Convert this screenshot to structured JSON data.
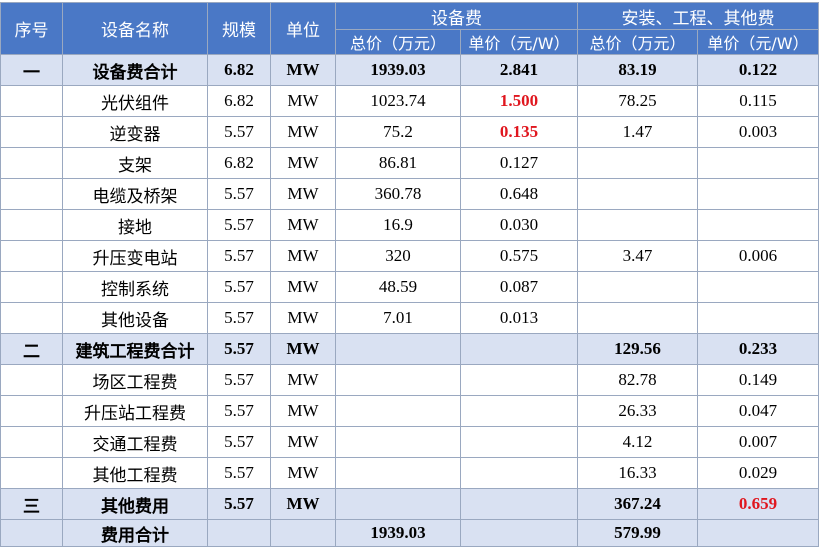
{
  "table": {
    "header": {
      "row1": [
        "序号",
        "设备名称",
        "规模",
        "单位",
        "设备费",
        "安装、工程、其他费"
      ],
      "row2": [
        "总价（万元）",
        "单价（元/W）",
        "总价（万元）",
        "单价（元/W）"
      ]
    },
    "rows": [
      [
        "一",
        "设备费合计",
        "6.82",
        "MW",
        "1939.03",
        "2.841",
        "83.19",
        "0.122"
      ],
      [
        null,
        "光伏组件",
        "6.82",
        "MW",
        "1023.74",
        "1.500",
        "78.25",
        "0.115"
      ],
      [
        null,
        "逆变器",
        "5.57",
        "MW",
        "75.2",
        "0.135",
        "1.47",
        "0.003"
      ],
      [
        null,
        "支架",
        "6.82",
        "MW",
        "86.81",
        "0.127",
        null,
        null
      ],
      [
        null,
        "电缆及桥架",
        "5.57",
        "MW",
        "360.78",
        "0.648",
        null,
        null
      ],
      [
        null,
        "接地",
        "5.57",
        "MW",
        "16.9",
        "0.030",
        null,
        null
      ],
      [
        null,
        "升压变电站",
        "5.57",
        "MW",
        "320",
        "0.575",
        "3.47",
        "0.006"
      ],
      [
        null,
        "控制系统",
        "5.57",
        "MW",
        "48.59",
        "0.087",
        null,
        null
      ],
      [
        null,
        "其他设备",
        "5.57",
        "MW",
        "7.01",
        "0.013",
        null,
        null
      ],
      [
        "二",
        "建筑工程费合计",
        "5.57",
        "MW",
        null,
        null,
        "129.56",
        "0.233"
      ],
      [
        null,
        "场区工程费",
        "5.57",
        "MW",
        null,
        null,
        "82.78",
        "0.149"
      ],
      [
        null,
        "升压站工程费",
        "5.57",
        "MW",
        null,
        null,
        "26.33",
        "0.047"
      ],
      [
        null,
        "交通工程费",
        "5.57",
        "MW",
        null,
        null,
        "4.12",
        "0.007"
      ],
      [
        null,
        "其他工程费",
        "5.57",
        "MW",
        null,
        null,
        "16.33",
        "0.029"
      ],
      [
        "三",
        "其他费用",
        "5.57",
        "MW",
        null,
        null,
        "367.24",
        "0.659"
      ],
      [
        null,
        "费用合计",
        null,
        null,
        "1939.03",
        null,
        "579.99",
        null
      ]
    ],
    "subtotal_rows": [
      0,
      9,
      14,
      15
    ],
    "red_cells": [
      [
        1,
        5
      ],
      [
        2,
        5
      ],
      [
        14,
        7
      ]
    ],
    "header_color": "#4a78c6",
    "subtotal_color": "#d9e1f2",
    "highlight_color": "#e0161e"
  }
}
